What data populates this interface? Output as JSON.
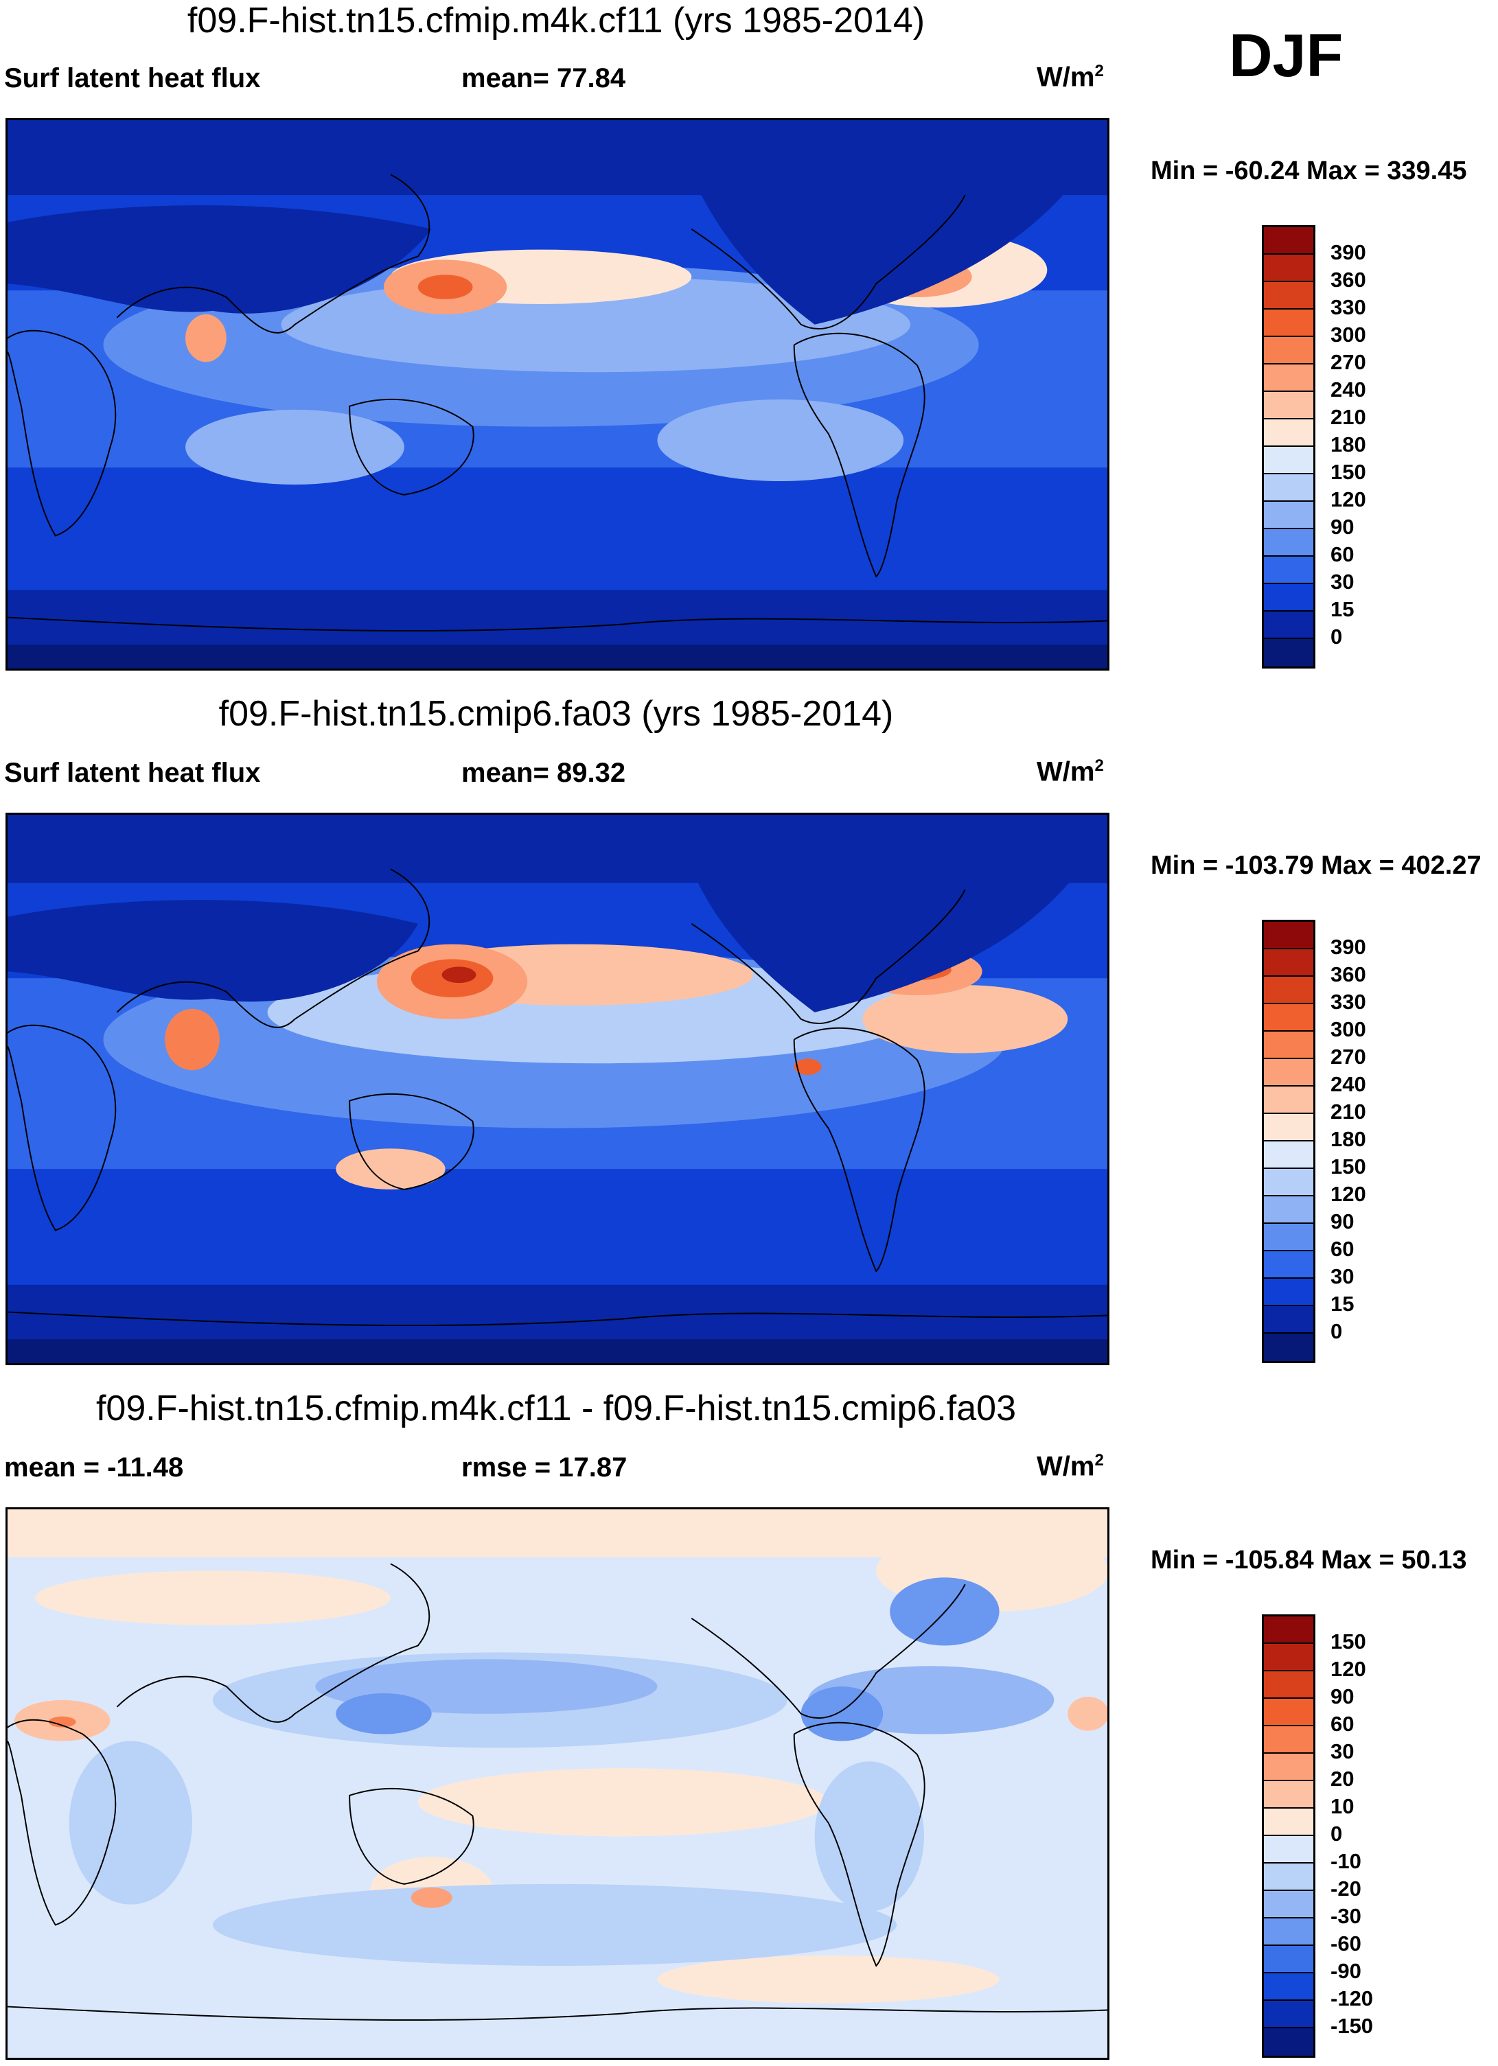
{
  "season": "DJF",
  "panels": [
    {
      "title": "f09.F-hist.tn15.cfmip.m4k.cf11 (yrs 1985-2014)",
      "left_label": "Surf latent heat flux",
      "mid_label": "mean=  77.84",
      "units_base": "W/m",
      "units_exp": "2",
      "minmax": "Min = -60.24 Max = 339.45",
      "colorbar": {
        "labels": [
          "390",
          "360",
          "330",
          "300",
          "270",
          "240",
          "210",
          "180",
          "150",
          "120",
          "90",
          "60",
          "30",
          "15",
          "0"
        ],
        "colors": [
          "#8e0a0a",
          "#b72310",
          "#d9401c",
          "#f0602e",
          "#f88050",
          "#fba078",
          "#fdc2a4",
          "#fde6d6",
          "#dce9fb",
          "#b6cff8",
          "#8fb2f4",
          "#5e8ff0",
          "#2f66ea",
          "#0f3fd4",
          "#0826a6",
          "#061978"
        ]
      }
    },
    {
      "title": "f09.F-hist.tn15.cmip6.fa03 (yrs 1985-2014)",
      "left_label": "Surf latent heat flux",
      "mid_label": "mean=  89.32",
      "units_base": "W/m",
      "units_exp": "2",
      "minmax": "Min = -103.79 Max = 402.27",
      "colorbar": {
        "labels": [
          "390",
          "360",
          "330",
          "300",
          "270",
          "240",
          "210",
          "180",
          "150",
          "120",
          "90",
          "60",
          "30",
          "15",
          "0"
        ],
        "colors": [
          "#8e0a0a",
          "#b72310",
          "#d9401c",
          "#f0602e",
          "#f88050",
          "#fba078",
          "#fdc2a4",
          "#fde6d6",
          "#dce9fb",
          "#b6cff8",
          "#8fb2f4",
          "#5e8ff0",
          "#2f66ea",
          "#0f3fd4",
          "#0826a6",
          "#061978"
        ]
      }
    },
    {
      "title": "f09.F-hist.tn15.cfmip.m4k.cf11 - f09.F-hist.tn15.cmip6.fa03",
      "left_label": "mean = -11.48",
      "mid_label": "rmse =  17.87",
      "units_base": "W/m",
      "units_exp": "2",
      "minmax": "Min = -105.84 Max =  50.13",
      "colorbar": {
        "labels": [
          "150",
          "120",
          "90",
          "60",
          "30",
          "20",
          "10",
          "0",
          "-10",
          "-20",
          "-30",
          "-60",
          "-90",
          "-120",
          "-150"
        ],
        "colors": [
          "#8e0a0a",
          "#b72310",
          "#d9401c",
          "#f0602e",
          "#f88050",
          "#fba078",
          "#fdc2a4",
          "#fde8d8",
          "#dbe8fb",
          "#b9d2f8",
          "#95b6f4",
          "#6a97ef",
          "#3a70e8",
          "#1448d8",
          "#0a2eb4",
          "#061a80"
        ]
      }
    }
  ]
}
